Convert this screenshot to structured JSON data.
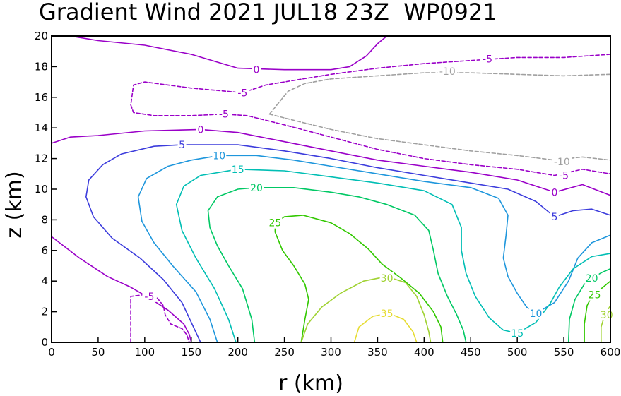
{
  "chart_data": {
    "type": "contour",
    "title": "Gradient Wind 2021 JUL18 23Z  WP0921",
    "xlabel": "r (km)",
    "ylabel": "z (km)",
    "xlim": [
      0,
      600
    ],
    "ylim": [
      0,
      20
    ],
    "xticks": [
      0,
      50,
      100,
      150,
      200,
      250,
      300,
      350,
      400,
      450,
      500,
      550,
      600
    ],
    "yticks": [
      0,
      2,
      4,
      6,
      8,
      10,
      12,
      14,
      16,
      18,
      20
    ],
    "grid": false,
    "contours": [
      {
        "level": -10,
        "label": "-10",
        "color": "#a0a0a0",
        "dashed": true,
        "labels": [
          {
            "r": 425,
            "z": 17.7
          },
          {
            "r": 548,
            "z": 11.8
          }
        ],
        "points": [
          [
            234,
            14.9
          ],
          [
            246,
            15.8
          ],
          [
            254,
            16.4
          ],
          [
            272,
            16.9
          ],
          [
            300,
            17.2
          ],
          [
            350,
            17.4
          ],
          [
            400,
            17.6
          ],
          [
            450,
            17.6
          ],
          [
            500,
            17.5
          ],
          [
            550,
            17.4
          ],
          [
            600,
            17.5
          ]
        ]
      },
      {
        "level": -10,
        "label": "",
        "color": "#a0a0a0",
        "dashed": true,
        "labels": [],
        "points": [
          [
            234,
            14.9
          ],
          [
            260,
            14.5
          ],
          [
            300,
            13.9
          ],
          [
            350,
            13.3
          ],
          [
            400,
            12.9
          ],
          [
            450,
            12.5
          ],
          [
            500,
            12.2
          ],
          [
            540,
            11.9
          ],
          [
            570,
            12.1
          ],
          [
            600,
            11.9
          ]
        ]
      },
      {
        "level": -5,
        "label": "-5",
        "color": "#9a00c8",
        "dashed": true,
        "labels": [
          {
            "r": 468,
            "z": 18.5
          },
          {
            "r": 205,
            "z": 16.3
          },
          {
            "r": 185,
            "z": 14.9
          },
          {
            "r": 550,
            "z": 10.9
          },
          {
            "r": 105,
            "z": 3.0
          }
        ],
        "points": [
          [
            205,
            16.3
          ],
          [
            230,
            16.8
          ],
          [
            260,
            17.1
          ],
          [
            300,
            17.5
          ],
          [
            350,
            17.9
          ],
          [
            400,
            18.2
          ],
          [
            450,
            18.4
          ],
          [
            500,
            18.6
          ],
          [
            550,
            18.6
          ],
          [
            600,
            18.8
          ]
        ]
      },
      {
        "level": -5,
        "label": "",
        "color": "#9a00c8",
        "dashed": true,
        "labels": [],
        "points": [
          [
            205,
            16.3
          ],
          [
            150,
            16.6
          ],
          [
            100,
            17.0
          ],
          [
            88,
            16.8
          ],
          [
            85,
            15.5
          ],
          [
            88,
            15.0
          ],
          [
            110,
            14.8
          ],
          [
            150,
            14.8
          ],
          [
            185,
            14.9
          ],
          [
            210,
            14.8
          ],
          [
            250,
            14.2
          ],
          [
            300,
            13.4
          ],
          [
            350,
            12.6
          ],
          [
            400,
            12.0
          ],
          [
            450,
            11.6
          ],
          [
            500,
            11.3
          ],
          [
            540,
            10.9
          ],
          [
            570,
            11.3
          ],
          [
            600,
            11.0
          ]
        ]
      },
      {
        "level": -5,
        "label": "",
        "color": "#9a00c8",
        "dashed": true,
        "labels": [],
        "points": [
          [
            85,
            0
          ],
          [
            85,
            3.0
          ],
          [
            98,
            3.1
          ],
          [
            112,
            3.0
          ],
          [
            120,
            2.4
          ],
          [
            122,
            1.8
          ],
          [
            128,
            1.2
          ],
          [
            140,
            0.9
          ],
          [
            145,
            0.5
          ],
          [
            148,
            0
          ]
        ]
      },
      {
        "level": 0,
        "label": "0",
        "color": "#9a00c8",
        "dashed": false,
        "labels": [
          {
            "r": 220,
            "z": 17.8
          },
          {
            "r": 160,
            "z": 13.9
          },
          {
            "r": 540,
            "z": 9.8
          }
        ],
        "points": [
          [
            20,
            20
          ],
          [
            50,
            19.7
          ],
          [
            100,
            19.4
          ],
          [
            150,
            18.8
          ],
          [
            200,
            17.9
          ],
          [
            250,
            17.8
          ],
          [
            300,
            17.8
          ],
          [
            320,
            18.0
          ],
          [
            338,
            18.7
          ],
          [
            350,
            19.5
          ],
          [
            360,
            20
          ]
        ]
      },
      {
        "level": 0,
        "label": "",
        "color": "#9a00c8",
        "dashed": false,
        "labels": [],
        "points": [
          [
            0,
            13.0
          ],
          [
            20,
            13.4
          ],
          [
            50,
            13.5
          ],
          [
            100,
            13.8
          ],
          [
            160,
            13.9
          ],
          [
            200,
            13.7
          ],
          [
            250,
            13.1
          ],
          [
            300,
            12.5
          ],
          [
            350,
            11.9
          ],
          [
            400,
            11.5
          ],
          [
            450,
            11.1
          ],
          [
            500,
            10.6
          ],
          [
            540,
            9.8
          ],
          [
            570,
            10.3
          ],
          [
            600,
            9.6
          ]
        ]
      },
      {
        "level": 0,
        "label": "",
        "color": "#9a00c8",
        "dashed": false,
        "labels": [],
        "points": [
          [
            0,
            6.9
          ],
          [
            30,
            5.5
          ],
          [
            60,
            4.3
          ],
          [
            85,
            3.6
          ],
          [
            105,
            2.9
          ],
          [
            125,
            2.1
          ],
          [
            142,
            1.2
          ],
          [
            148,
            0.5
          ],
          [
            150,
            0
          ]
        ]
      },
      {
        "level": 5,
        "label": "5",
        "color": "#3c3cdc",
        "dashed": false,
        "labels": [
          {
            "r": 140,
            "z": 12.9
          },
          {
            "r": 540,
            "z": 8.2
          }
        ],
        "points": [
          [
            160,
            0
          ],
          [
            150,
            1.3
          ],
          [
            140,
            2.6
          ],
          [
            120,
            4.1
          ],
          [
            95,
            5.5
          ],
          [
            65,
            6.8
          ],
          [
            45,
            8.2
          ],
          [
            37,
            9.5
          ],
          [
            40,
            10.6
          ],
          [
            55,
            11.6
          ],
          [
            75,
            12.3
          ],
          [
            110,
            12.8
          ],
          [
            140,
            12.9
          ],
          [
            200,
            12.9
          ],
          [
            250,
            12.5
          ],
          [
            300,
            12.0
          ],
          [
            350,
            11.4
          ],
          [
            400,
            10.9
          ],
          [
            450,
            10.4
          ],
          [
            490,
            10.0
          ],
          [
            520,
            9.2
          ],
          [
            540,
            8.2
          ],
          [
            560,
            8.6
          ],
          [
            580,
            8.7
          ],
          [
            600,
            8.3
          ]
        ]
      },
      {
        "level": 10,
        "label": "10",
        "color": "#1e96dc",
        "dashed": false,
        "labels": [
          {
            "r": 180,
            "z": 12.2
          },
          {
            "r": 520,
            "z": 1.9
          }
        ],
        "points": [
          [
            178,
            0
          ],
          [
            170,
            1.5
          ],
          [
            155,
            3.3
          ],
          [
            130,
            5.0
          ],
          [
            110,
            6.5
          ],
          [
            97,
            7.9
          ],
          [
            93,
            9.5
          ],
          [
            102,
            10.7
          ],
          [
            125,
            11.5
          ],
          [
            150,
            11.9
          ],
          [
            180,
            12.2
          ],
          [
            220,
            12.2
          ],
          [
            260,
            11.9
          ],
          [
            300,
            11.5
          ],
          [
            350,
            11.0
          ],
          [
            400,
            10.5
          ],
          [
            450,
            10.1
          ],
          [
            480,
            9.4
          ],
          [
            490,
            8.3
          ],
          [
            488,
            7.0
          ],
          [
            485,
            5.5
          ],
          [
            490,
            4.3
          ],
          [
            500,
            3.2
          ],
          [
            510,
            2.3
          ],
          [
            520,
            1.9
          ],
          [
            540,
            2.6
          ],
          [
            555,
            4.0
          ],
          [
            565,
            5.5
          ],
          [
            580,
            6.5
          ],
          [
            600,
            7.0
          ]
        ]
      },
      {
        "level": 15,
        "label": "15",
        "color": "#00beb4",
        "dashed": false,
        "labels": [
          {
            "r": 200,
            "z": 11.3
          },
          {
            "r": 500,
            "z": 0.6
          }
        ],
        "points": [
          [
            198,
            0
          ],
          [
            190,
            1.5
          ],
          [
            175,
            3.5
          ],
          [
            155,
            5.5
          ],
          [
            140,
            7.3
          ],
          [
            134,
            9.0
          ],
          [
            142,
            10.2
          ],
          [
            160,
            10.9
          ],
          [
            200,
            11.3
          ],
          [
            250,
            11.2
          ],
          [
            300,
            10.8
          ],
          [
            350,
            10.4
          ],
          [
            400,
            9.9
          ],
          [
            430,
            9.0
          ],
          [
            440,
            7.5
          ],
          [
            440,
            6.0
          ],
          [
            445,
            4.5
          ],
          [
            455,
            3.0
          ],
          [
            470,
            1.6
          ],
          [
            485,
            0.8
          ],
          [
            500,
            0.6
          ],
          [
            520,
            1.3
          ],
          [
            535,
            2.5
          ],
          [
            545,
            3.6
          ],
          [
            560,
            4.8
          ],
          [
            580,
            5.6
          ],
          [
            600,
            5.8
          ]
        ]
      },
      {
        "level": 20,
        "label": "20",
        "color": "#00c864",
        "dashed": false,
        "labels": [
          {
            "r": 220,
            "z": 10.1
          },
          {
            "r": 580,
            "z": 4.2
          }
        ],
        "points": [
          [
            218,
            0
          ],
          [
            215,
            1.5
          ],
          [
            205,
            3.5
          ],
          [
            190,
            5.0
          ],
          [
            178,
            6.3
          ],
          [
            170,
            7.5
          ],
          [
            168,
            8.6
          ],
          [
            178,
            9.5
          ],
          [
            200,
            10.0
          ],
          [
            220,
            10.1
          ],
          [
            260,
            10.1
          ],
          [
            300,
            9.8
          ],
          [
            330,
            9.5
          ],
          [
            360,
            9.0
          ],
          [
            390,
            8.3
          ],
          [
            405,
            7.3
          ],
          [
            410,
            6.0
          ],
          [
            415,
            4.5
          ],
          [
            425,
            3.0
          ],
          [
            435,
            1.8
          ],
          [
            442,
            0.8
          ],
          [
            445,
            0
          ]
        ]
      },
      {
        "level": 20,
        "label": "",
        "color": "#00c864",
        "dashed": false,
        "labels": [],
        "points": [
          [
            555,
            0
          ],
          [
            556,
            1.5
          ],
          [
            562,
            2.8
          ],
          [
            572,
            3.8
          ],
          [
            580,
            4.2
          ],
          [
            592,
            4.6
          ],
          [
            600,
            4.8
          ]
        ]
      },
      {
        "level": 25,
        "label": "25",
        "color": "#32c800",
        "dashed": false,
        "labels": [
          {
            "r": 240,
            "z": 7.8
          },
          {
            "r": 583,
            "z": 3.1
          }
        ],
        "points": [
          [
            268,
            0
          ],
          [
            272,
            1.5
          ],
          [
            276,
            2.8
          ],
          [
            272,
            3.8
          ],
          [
            260,
            5.0
          ],
          [
            248,
            6.0
          ],
          [
            240,
            7.2
          ],
          [
            240,
            7.8
          ],
          [
            250,
            8.2
          ],
          [
            270,
            8.3
          ],
          [
            300,
            7.8
          ],
          [
            320,
            7.1
          ],
          [
            340,
            6.1
          ],
          [
            355,
            5.1
          ],
          [
            375,
            4.2
          ],
          [
            395,
            3.2
          ],
          [
            410,
            2.0
          ],
          [
            418,
            1.0
          ],
          [
            420,
            0
          ]
        ]
      },
      {
        "level": 25,
        "label": "",
        "color": "#32c800",
        "dashed": false,
        "labels": [],
        "points": [
          [
            572,
            0
          ],
          [
            572,
            1.2
          ],
          [
            575,
            2.4
          ],
          [
            580,
            3.0
          ],
          [
            590,
            3.5
          ],
          [
            600,
            4.0
          ]
        ]
      },
      {
        "level": 30,
        "label": "30",
        "color": "#a0d232",
        "dashed": false,
        "labels": [
          {
            "r": 360,
            "z": 4.2
          },
          {
            "r": 596,
            "z": 1.8
          }
        ],
        "points": [
          [
            268,
            0
          ],
          [
            275,
            1.2
          ],
          [
            290,
            2.3
          ],
          [
            310,
            3.2
          ],
          [
            335,
            4.0
          ],
          [
            360,
            4.3
          ],
          [
            380,
            3.9
          ],
          [
            392,
            3.0
          ],
          [
            400,
            1.8
          ],
          [
            405,
            0.7
          ],
          [
            407,
            0
          ]
        ]
      },
      {
        "level": 30,
        "label": "",
        "color": "#a0d232",
        "dashed": false,
        "labels": [],
        "points": [
          [
            590,
            0
          ],
          [
            590,
            1.0
          ],
          [
            594,
            1.8
          ],
          [
            600,
            2.4
          ]
        ]
      },
      {
        "level": 35,
        "label": "35",
        "color": "#e6dc32",
        "dashed": false,
        "labels": [
          {
            "r": 360,
            "z": 1.9
          }
        ],
        "points": [
          [
            325,
            0
          ],
          [
            330,
            1.0
          ],
          [
            345,
            1.7
          ],
          [
            362,
            1.9
          ],
          [
            378,
            1.5
          ],
          [
            388,
            0.7
          ],
          [
            392,
            0
          ]
        ]
      }
    ]
  }
}
